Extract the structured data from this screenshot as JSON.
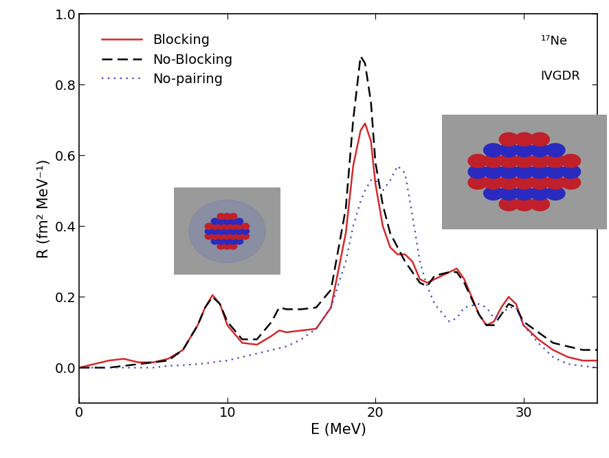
{
  "chart_data": {
    "type": "line",
    "x_label": "E (MeV)",
    "y_label": "R (fm² MeV⁻¹)",
    "annotations": [
      "¹⁷Ne",
      "IVGDR"
    ],
    "legend": "upper left",
    "xlim": [
      0,
      35
    ],
    "ylim": [
      -0.1,
      1.0
    ],
    "xticks": [
      0,
      10,
      20,
      30
    ],
    "yticks": [
      {
        "value": 0,
        "label": "0.0"
      },
      {
        "value": 0.2,
        "label": "0.2"
      },
      {
        "value": 0.4,
        "label": "0.4"
      },
      {
        "value": 0.6,
        "label": "0.6"
      },
      {
        "value": 0.8,
        "label": "0.8"
      },
      {
        "value": 1.0,
        "label": "1.0"
      }
    ],
    "x": [
      0,
      1,
      2,
      3,
      4,
      5,
      6,
      7,
      8,
      8.5,
      9,
      9.5,
      10,
      11,
      12,
      13,
      13.5,
      14,
      15,
      16,
      17,
      18,
      18.5,
      19,
      19.3,
      19.7,
      20,
      20.5,
      21,
      21.5,
      22,
      22.5,
      23,
      23.5,
      24,
      25,
      25.5,
      26,
      27,
      27.5,
      28,
      28.5,
      29,
      29.5,
      30,
      31,
      32,
      33,
      34,
      35
    ],
    "series": [
      {
        "name": "Blocking",
        "color": "#d62728",
        "line_style": "solid",
        "values": [
          0,
          0.01,
          0.02,
          0.025,
          0.015,
          0.015,
          0.025,
          0.05,
          0.12,
          0.17,
          0.205,
          0.18,
          0.12,
          0.07,
          0.065,
          0.09,
          0.105,
          0.1,
          0.105,
          0.11,
          0.17,
          0.38,
          0.57,
          0.67,
          0.69,
          0.64,
          0.52,
          0.4,
          0.34,
          0.32,
          0.32,
          0.3,
          0.25,
          0.24,
          0.25,
          0.27,
          0.28,
          0.25,
          0.15,
          0.12,
          0.13,
          0.17,
          0.2,
          0.18,
          0.12,
          0.08,
          0.05,
          0.03,
          0.02,
          0.02
        ]
      },
      {
        "name": "No-Blocking",
        "color": "#000000",
        "line_style": "dashed",
        "values": [
          0,
          0.0,
          0.0,
          0.005,
          0.01,
          0.015,
          0.02,
          0.05,
          0.12,
          0.17,
          0.2,
          0.18,
          0.13,
          0.08,
          0.08,
          0.13,
          0.17,
          0.165,
          0.165,
          0.17,
          0.22,
          0.45,
          0.7,
          0.88,
          0.86,
          0.75,
          0.58,
          0.46,
          0.38,
          0.34,
          0.3,
          0.27,
          0.24,
          0.23,
          0.26,
          0.27,
          0.27,
          0.24,
          0.15,
          0.12,
          0.12,
          0.15,
          0.18,
          0.17,
          0.13,
          0.1,
          0.07,
          0.06,
          0.05,
          0.05
        ]
      },
      {
        "name": "No-pairing",
        "color": "#3b3bbf",
        "line_style": "dotted",
        "values": [
          0,
          0,
          0,
          0,
          0,
          0,
          0.005,
          0.007,
          0.01,
          0.012,
          0.015,
          0.018,
          0.02,
          0.03,
          0.04,
          0.05,
          0.055,
          0.06,
          0.08,
          0.11,
          0.17,
          0.3,
          0.4,
          0.47,
          0.5,
          0.53,
          0.53,
          0.5,
          0.53,
          0.57,
          0.55,
          0.43,
          0.3,
          0.23,
          0.18,
          0.13,
          0.14,
          0.17,
          0.18,
          0.17,
          0.14,
          0.15,
          0.17,
          0.17,
          0.12,
          0.07,
          0.03,
          0.01,
          0.005,
          0.0
        ]
      }
    ]
  }
}
